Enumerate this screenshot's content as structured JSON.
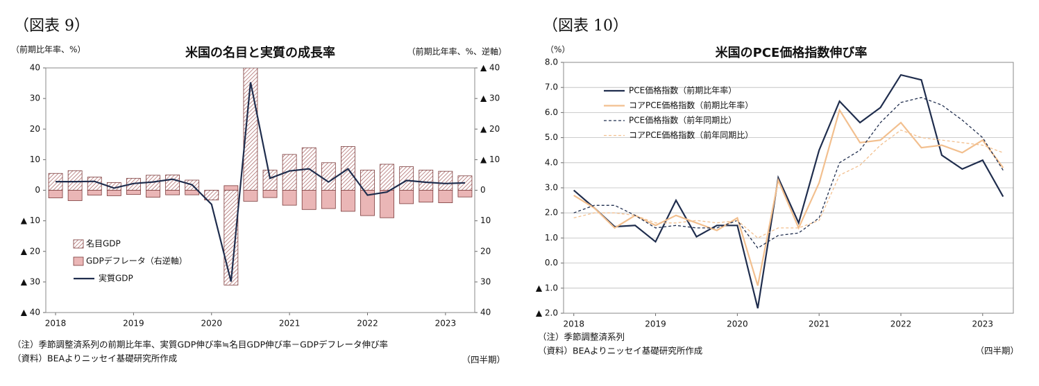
{
  "chart_data": [
    {
      "type": "bar",
      "figure_label": "（図表 9）",
      "title": "米国の名目と実質の成長率",
      "y_label": "（前期比年率、%）",
      "y2_label": "（前期比年率、%、逆軸）",
      "categories": [
        "2018",
        null,
        null,
        null,
        "2019",
        null,
        null,
        null,
        "2020",
        null,
        null,
        null,
        "2021",
        null,
        null,
        null,
        "2022",
        null,
        null,
        null,
        "2023",
        null
      ],
      "series": [
        {
          "name": "名目GDP",
          "type": "bar",
          "pattern": "hatch",
          "color": "#a35a5a",
          "values": [
            5.5,
            6.4,
            4.3,
            2.5,
            3.9,
            4.9,
            5.0,
            3.3,
            -3.2,
            -31.0,
            40,
            6.6,
            11.7,
            13.9,
            9.0,
            14.3,
            6.6,
            8.5,
            7.7,
            6.6,
            6.2,
            4.7
          ]
        },
        {
          "name": "GDPデフレータ（右逆軸）",
          "type": "bar",
          "axis": "y2",
          "color": "#eab6b6",
          "values": [
            2.5,
            3.4,
            1.6,
            1.8,
            1.4,
            2.3,
            1.5,
            1.5,
            1.6,
            -1.5,
            3.6,
            2.4,
            4.9,
            6.3,
            6.0,
            6.9,
            8.3,
            9.0,
            4.4,
            3.9,
            4.1,
            2.2
          ]
        },
        {
          "name": "実質GDP",
          "type": "line",
          "color": "#1f2d4d",
          "values": [
            2.8,
            2.8,
            2.9,
            0.7,
            2.2,
            2.7,
            3.6,
            1.8,
            -4.6,
            -29.9,
            35.3,
            3.9,
            6.3,
            7.0,
            2.7,
            7.0,
            -1.6,
            -0.6,
            3.2,
            2.6,
            2.2,
            2.4
          ]
        }
      ],
      "ylim": [
        -40,
        40
      ],
      "yticks": [
        {
          "value": -40,
          "label": "▲ 40"
        },
        {
          "value": -30,
          "label": "▲ 30"
        },
        {
          "value": -20,
          "label": "▲ 20"
        },
        {
          "value": -10,
          "label": "▲ 10"
        },
        0,
        10,
        20,
        30,
        40
      ],
      "y2lim": [
        40,
        -40
      ],
      "y2ticks": [
        40,
        30,
        20,
        10,
        0,
        {
          "value": -10,
          "label": "▲ 10"
        },
        {
          "value": -20,
          "label": "▲ 20"
        },
        {
          "value": -30,
          "label": "▲ 30"
        },
        {
          "value": -40,
          "label": "▲ 40"
        }
      ],
      "grid": false,
      "legend": "lower left",
      "notes": [
        "（注）季節調整済系列の前期比年率、実質GDP伸び率≒名目GDP伸び率－GDPデフレータ伸び率",
        "（資料）BEAよりニッセイ基礎研究所作成"
      ],
      "x_unit_label": "（四半期）"
    },
    {
      "type": "line",
      "figure_label": "（図表 10）",
      "title": "米国のPCE価格指数伸び率",
      "y_label": "（%）",
      "categories": [
        "2018",
        null,
        null,
        null,
        "2019",
        null,
        null,
        null,
        "2020",
        null,
        null,
        null,
        "2021",
        null,
        null,
        null,
        "2022",
        null,
        null,
        null,
        "2023",
        null
      ],
      "series": [
        {
          "name": "PCE価格指数（前期比年率）",
          "color": "#1f2d4d",
          "dash": false,
          "values": [
            2.9,
            2.2,
            1.45,
            1.5,
            0.85,
            2.5,
            1.05,
            1.5,
            1.5,
            -1.8,
            3.4,
            1.6,
            4.5,
            6.45,
            5.6,
            6.2,
            7.5,
            7.3,
            4.3,
            3.75,
            4.1,
            2.65
          ]
        },
        {
          "name": "コアPCE価格指数（前期比年率）",
          "color": "#f2bf8e",
          "dash": false,
          "values": [
            2.7,
            2.2,
            1.4,
            1.9,
            1.5,
            1.9,
            1.6,
            1.3,
            1.8,
            -0.9,
            3.3,
            1.4,
            3.2,
            6.1,
            4.8,
            4.9,
            5.6,
            4.6,
            4.7,
            4.4,
            4.9,
            3.8
          ]
        },
        {
          "name": "PCE価格指数（前年同期比）",
          "color": "#1f2d4d",
          "dash": true,
          "values": [
            2.0,
            2.3,
            2.3,
            1.9,
            1.4,
            1.5,
            1.4,
            1.4,
            1.7,
            0.6,
            1.1,
            1.2,
            1.8,
            4.0,
            4.5,
            5.6,
            6.4,
            6.6,
            6.3,
            5.7,
            5.0,
            3.7
          ]
        },
        {
          "name": "コアPCE価格指数（前年同期比）",
          "color": "#f2bf8e",
          "dash": true,
          "values": [
            1.8,
            2.0,
            2.0,
            1.9,
            1.6,
            1.6,
            1.7,
            1.6,
            1.7,
            1.0,
            1.4,
            1.4,
            1.7,
            3.5,
            3.9,
            4.7,
            5.3,
            5.0,
            4.9,
            4.8,
            4.7,
            4.4
          ]
        }
      ],
      "ylim": [
        -2,
        8
      ],
      "yticks": [
        {
          "value": -2,
          "label": "▲ 2.0"
        },
        {
          "value": -1,
          "label": "▲ 1.0"
        },
        {
          "value": 0,
          "label": "0.0"
        },
        {
          "value": 1,
          "label": "1.0"
        },
        {
          "value": 2,
          "label": "2.0"
        },
        {
          "value": 3,
          "label": "3.0"
        },
        {
          "value": 4,
          "label": "4.0"
        },
        {
          "value": 5,
          "label": "5.0"
        },
        {
          "value": 6,
          "label": "6.0"
        },
        {
          "value": 7,
          "label": "7.0"
        },
        {
          "value": 8,
          "label": "8.0"
        }
      ],
      "grid": true,
      "legend": "upper left",
      "notes": [
        "（注）季節調整済系列",
        "（資料）BEAよりニッセイ基礎研究所作成"
      ],
      "x_unit_label": "（四半期）"
    }
  ]
}
